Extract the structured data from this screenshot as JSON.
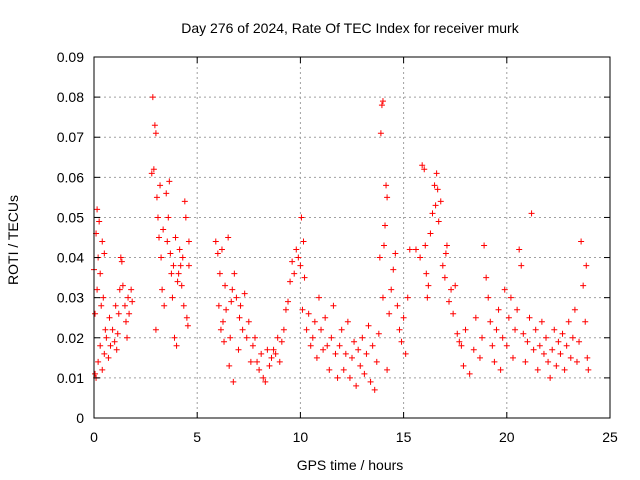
{
  "chart_data": {
    "type": "scatter",
    "title": "Day 276 of 2024, Rate Of TEC Index for receiver murk",
    "xlabel": "GPS time / hours",
    "ylabel": "ROTI / TECUs",
    "xlim": [
      0,
      25
    ],
    "ylim": [
      0,
      0.09
    ],
    "xticks": [
      0,
      5,
      10,
      15,
      20,
      25
    ],
    "xtick_labels": [
      "0",
      "5",
      "10",
      "15",
      "20",
      "25"
    ],
    "yticks": [
      0,
      0.01,
      0.02,
      0.03,
      0.04,
      0.05,
      0.06,
      0.07,
      0.08,
      0.09
    ],
    "ytick_labels": [
      "0",
      "0.01",
      "0.02",
      "0.03",
      "0.04",
      "0.05",
      "0.06",
      "0.07",
      "0.08",
      "0.09"
    ],
    "grid": true,
    "marker": "+",
    "color": "#ff0000",
    "series": [
      {
        "name": "ROTI",
        "points": [
          [
            0.0,
            0.037
          ],
          [
            0.05,
            0.011
          ],
          [
            0.05,
            0.026
          ],
          [
            0.1,
            0.046
          ],
          [
            0.1,
            0.01
          ],
          [
            0.15,
            0.052
          ],
          [
            0.15,
            0.032
          ],
          [
            0.2,
            0.04
          ],
          [
            0.2,
            0.014
          ],
          [
            0.25,
            0.049
          ],
          [
            0.3,
            0.018
          ],
          [
            0.3,
            0.036
          ],
          [
            0.35,
            0.028
          ],
          [
            0.4,
            0.044
          ],
          [
            0.4,
            0.012
          ],
          [
            0.45,
            0.03
          ],
          [
            0.5,
            0.041
          ],
          [
            0.5,
            0.016
          ],
          [
            0.55,
            0.022
          ],
          [
            0.6,
            0.02
          ],
          [
            0.7,
            0.015
          ],
          [
            0.75,
            0.025
          ],
          [
            0.8,
            0.018
          ],
          [
            0.9,
            0.022
          ],
          [
            1.0,
            0.019
          ],
          [
            1.05,
            0.028
          ],
          [
            1.1,
            0.017
          ],
          [
            1.15,
            0.021
          ],
          [
            1.2,
            0.026
          ],
          [
            1.25,
            0.032
          ],
          [
            1.3,
            0.04
          ],
          [
            1.35,
            0.039
          ],
          [
            1.4,
            0.033
          ],
          [
            1.5,
            0.028
          ],
          [
            1.55,
            0.024
          ],
          [
            1.6,
            0.02
          ],
          [
            1.65,
            0.03
          ],
          [
            1.7,
            0.026
          ],
          [
            1.8,
            0.032
          ],
          [
            1.85,
            0.029
          ],
          [
            2.8,
            0.061
          ],
          [
            2.85,
            0.08
          ],
          [
            2.9,
            0.062
          ],
          [
            2.95,
            0.073
          ],
          [
            3.0,
            0.071
          ],
          [
            3.0,
            0.022
          ],
          [
            3.05,
            0.055
          ],
          [
            3.1,
            0.05
          ],
          [
            3.15,
            0.045
          ],
          [
            3.2,
            0.058
          ],
          [
            3.25,
            0.04
          ],
          [
            3.3,
            0.032
          ],
          [
            3.35,
            0.047
          ],
          [
            3.4,
            0.028
          ],
          [
            3.5,
            0.056
          ],
          [
            3.55,
            0.044
          ],
          [
            3.6,
            0.05
          ],
          [
            3.65,
            0.059
          ],
          [
            3.7,
            0.041
          ],
          [
            3.75,
            0.036
          ],
          [
            3.8,
            0.03
          ],
          [
            3.85,
            0.038
          ],
          [
            3.9,
            0.02
          ],
          [
            3.95,
            0.045
          ],
          [
            4.0,
            0.018
          ],
          [
            4.05,
            0.034
          ],
          [
            4.1,
            0.036
          ],
          [
            4.15,
            0.042
          ],
          [
            4.2,
            0.038
          ],
          [
            4.25,
            0.033
          ],
          [
            4.3,
            0.04
          ],
          [
            4.35,
            0.028
          ],
          [
            4.4,
            0.054
          ],
          [
            4.45,
            0.05
          ],
          [
            4.5,
            0.025
          ],
          [
            4.55,
            0.023
          ],
          [
            4.6,
            0.044
          ],
          [
            4.6,
            0.038
          ],
          [
            5.9,
            0.044
          ],
          [
            6.0,
            0.041
          ],
          [
            6.05,
            0.028
          ],
          [
            6.1,
            0.036
          ],
          [
            6.15,
            0.022
          ],
          [
            6.2,
            0.042
          ],
          [
            6.25,
            0.024
          ],
          [
            6.3,
            0.019
          ],
          [
            6.35,
            0.033
          ],
          [
            6.4,
            0.027
          ],
          [
            6.5,
            0.045
          ],
          [
            6.55,
            0.013
          ],
          [
            6.6,
            0.02
          ],
          [
            6.65,
            0.029
          ],
          [
            6.7,
            0.032
          ],
          [
            6.75,
            0.009
          ],
          [
            6.8,
            0.036
          ],
          [
            6.9,
            0.03
          ],
          [
            7.0,
            0.017
          ],
          [
            7.05,
            0.025
          ],
          [
            7.1,
            0.028
          ],
          [
            7.2,
            0.022
          ],
          [
            7.3,
            0.031
          ],
          [
            7.4,
            0.02
          ],
          [
            7.5,
            0.024
          ],
          [
            7.6,
            0.014
          ],
          [
            7.7,
            0.018
          ],
          [
            7.8,
            0.02
          ],
          [
            7.9,
            0.014
          ],
          [
            8.0,
            0.012
          ],
          [
            8.1,
            0.016
          ],
          [
            8.2,
            0.01
          ],
          [
            8.3,
            0.009
          ],
          [
            8.4,
            0.017
          ],
          [
            8.5,
            0.013
          ],
          [
            8.6,
            0.015
          ],
          [
            8.7,
            0.017
          ],
          [
            8.8,
            0.016
          ],
          [
            8.9,
            0.02
          ],
          [
            9.0,
            0.014
          ],
          [
            9.1,
            0.019
          ],
          [
            9.2,
            0.022
          ],
          [
            9.3,
            0.027
          ],
          [
            9.4,
            0.029
          ],
          [
            9.5,
            0.034
          ],
          [
            9.6,
            0.039
          ],
          [
            9.7,
            0.036
          ],
          [
            9.8,
            0.042
          ],
          [
            9.9,
            0.04
          ],
          [
            10.0,
            0.038
          ],
          [
            10.05,
            0.05
          ],
          [
            10.1,
            0.027
          ],
          [
            10.15,
            0.044
          ],
          [
            10.2,
            0.035
          ],
          [
            10.3,
            0.022
          ],
          [
            10.4,
            0.026
          ],
          [
            10.5,
            0.018
          ],
          [
            10.6,
            0.02
          ],
          [
            10.7,
            0.024
          ],
          [
            10.8,
            0.015
          ],
          [
            10.9,
            0.03
          ],
          [
            11.0,
            0.022
          ],
          [
            11.1,
            0.017
          ],
          [
            11.2,
            0.025
          ],
          [
            11.3,
            0.018
          ],
          [
            11.4,
            0.012
          ],
          [
            11.5,
            0.02
          ],
          [
            11.6,
            0.028
          ],
          [
            11.7,
            0.016
          ],
          [
            11.8,
            0.01
          ],
          [
            11.9,
            0.018
          ],
          [
            12.0,
            0.022
          ],
          [
            12.1,
            0.012
          ],
          [
            12.2,
            0.016
          ],
          [
            12.3,
            0.024
          ],
          [
            12.4,
            0.01
          ],
          [
            12.5,
            0.015
          ],
          [
            12.6,
            0.019
          ],
          [
            12.7,
            0.008
          ],
          [
            12.8,
            0.017
          ],
          [
            12.9,
            0.013
          ],
          [
            13.0,
            0.02
          ],
          [
            13.1,
            0.011
          ],
          [
            13.2,
            0.016
          ],
          [
            13.3,
            0.023
          ],
          [
            13.4,
            0.009
          ],
          [
            13.5,
            0.018
          ],
          [
            13.6,
            0.007
          ],
          [
            13.7,
            0.014
          ],
          [
            13.8,
            0.021
          ],
          [
            13.85,
            0.04
          ],
          [
            13.9,
            0.071
          ],
          [
            13.95,
            0.078
          ],
          [
            14.0,
            0.079
          ],
          [
            14.0,
            0.03
          ],
          [
            14.05,
            0.043
          ],
          [
            14.1,
            0.048
          ],
          [
            14.15,
            0.058
          ],
          [
            14.2,
            0.055
          ],
          [
            14.2,
            0.012
          ],
          [
            14.3,
            0.026
          ],
          [
            14.4,
            0.032
          ],
          [
            14.5,
            0.037
          ],
          [
            14.6,
            0.041
          ],
          [
            14.7,
            0.028
          ],
          [
            14.8,
            0.022
          ],
          [
            14.9,
            0.019
          ],
          [
            15.0,
            0.025
          ],
          [
            15.1,
            0.016
          ],
          [
            15.2,
            0.03
          ],
          [
            15.3,
            0.042
          ],
          [
            15.6,
            0.042
          ],
          [
            15.8,
            0.04
          ],
          [
            15.9,
            0.063
          ],
          [
            16.0,
            0.062
          ],
          [
            16.05,
            0.043
          ],
          [
            16.1,
            0.036
          ],
          [
            16.15,
            0.03
          ],
          [
            16.2,
            0.033
          ],
          [
            16.3,
            0.046
          ],
          [
            16.4,
            0.051
          ],
          [
            16.5,
            0.058
          ],
          [
            16.55,
            0.053
          ],
          [
            16.6,
            0.061
          ],
          [
            16.65,
            0.057
          ],
          [
            16.7,
            0.049
          ],
          [
            16.8,
            0.054
          ],
          [
            16.9,
            0.038
          ],
          [
            17.0,
            0.035
          ],
          [
            17.05,
            0.041
          ],
          [
            17.1,
            0.043
          ],
          [
            17.2,
            0.029
          ],
          [
            17.3,
            0.032
          ],
          [
            17.4,
            0.026
          ],
          [
            17.5,
            0.033
          ],
          [
            17.6,
            0.021
          ],
          [
            17.7,
            0.019
          ],
          [
            17.8,
            0.018
          ],
          [
            17.9,
            0.013
          ],
          [
            18.0,
            0.022
          ],
          [
            18.2,
            0.011
          ],
          [
            18.4,
            0.017
          ],
          [
            18.5,
            0.025
          ],
          [
            18.7,
            0.015
          ],
          [
            18.8,
            0.02
          ],
          [
            18.9,
            0.043
          ],
          [
            19.0,
            0.035
          ],
          [
            19.1,
            0.03
          ],
          [
            19.2,
            0.024
          ],
          [
            19.3,
            0.018
          ],
          [
            19.4,
            0.014
          ],
          [
            19.5,
            0.022
          ],
          [
            19.6,
            0.027
          ],
          [
            19.7,
            0.012
          ],
          [
            19.8,
            0.02
          ],
          [
            19.9,
            0.032
          ],
          [
            20.0,
            0.018
          ],
          [
            20.1,
            0.025
          ],
          [
            20.2,
            0.03
          ],
          [
            20.3,
            0.015
          ],
          [
            20.4,
            0.022
          ],
          [
            20.5,
            0.027
          ],
          [
            20.6,
            0.042
          ],
          [
            20.7,
            0.038
          ],
          [
            20.8,
            0.021
          ],
          [
            20.9,
            0.014
          ],
          [
            21.0,
            0.019
          ],
          [
            21.1,
            0.025
          ],
          [
            21.2,
            0.051
          ],
          [
            21.3,
            0.017
          ],
          [
            21.4,
            0.022
          ],
          [
            21.5,
            0.012
          ],
          [
            21.6,
            0.018
          ],
          [
            21.7,
            0.024
          ],
          [
            21.8,
            0.016
          ],
          [
            21.9,
            0.02
          ],
          [
            22.0,
            0.014
          ],
          [
            22.1,
            0.01
          ],
          [
            22.2,
            0.017
          ],
          [
            22.3,
            0.022
          ],
          [
            22.4,
            0.013
          ],
          [
            22.5,
            0.019
          ],
          [
            22.6,
            0.016
          ],
          [
            22.7,
            0.021
          ],
          [
            22.8,
            0.012
          ],
          [
            22.9,
            0.018
          ],
          [
            23.0,
            0.024
          ],
          [
            23.1,
            0.015
          ],
          [
            23.2,
            0.02
          ],
          [
            23.3,
            0.027
          ],
          [
            23.4,
            0.014
          ],
          [
            23.5,
            0.019
          ],
          [
            23.6,
            0.044
          ],
          [
            23.7,
            0.033
          ],
          [
            23.8,
            0.024
          ],
          [
            23.85,
            0.038
          ],
          [
            23.9,
            0.015
          ],
          [
            23.95,
            0.012
          ]
        ]
      }
    ]
  }
}
